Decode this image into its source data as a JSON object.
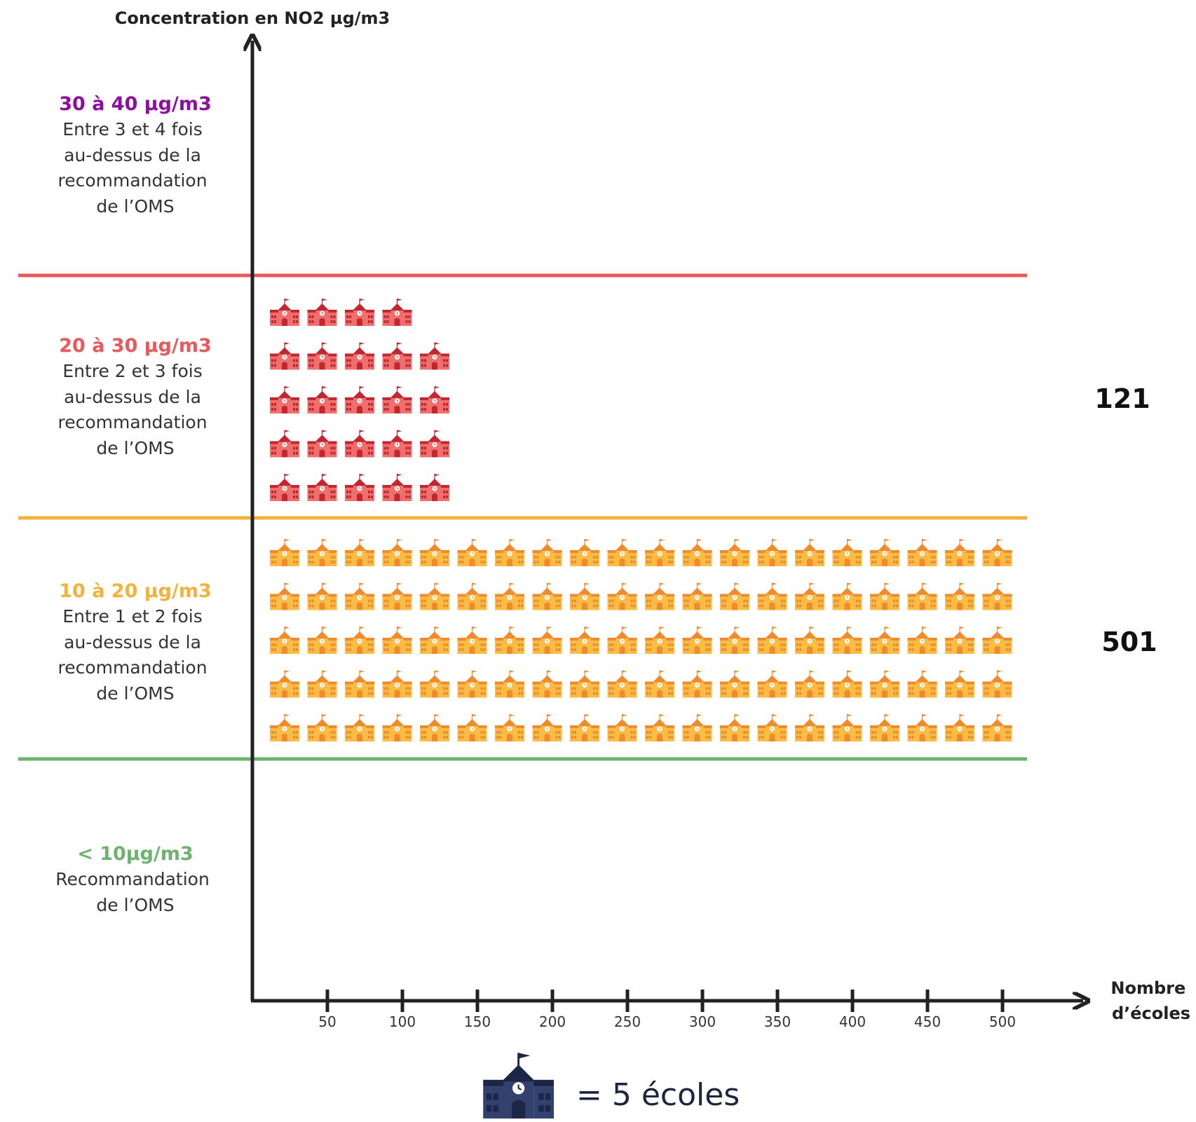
{
  "chart_data": {
    "type": "pictogram",
    "y_axis_title": "Concentration en NO2 µg/m3",
    "x_axis_title": [
      "Nombre",
      "d’écoles"
    ],
    "x_ticks": [
      50,
      100,
      150,
      200,
      250,
      300,
      350,
      400,
      450,
      500
    ],
    "unit_value": 5,
    "legend": "= 5 écoles",
    "bands": [
      {
        "key": "b30",
        "title": "30 à 40 µg/m3",
        "color": "#8e0f9e",
        "description": [
          "Entre 3 et 4 fois",
          "au-dessus de la",
          "recommandation",
          "de l’OMS"
        ],
        "rows": [],
        "total": ""
      },
      {
        "key": "b20",
        "title": "20 à 30 µg/m3",
        "color": "#e8595e",
        "description": [
          "Entre 2 et 3 fois",
          "au-dessus de la",
          "recommandation",
          "de l’OMS"
        ],
        "rows": [
          4,
          5,
          5,
          5,
          5
        ],
        "total": "121"
      },
      {
        "key": "b10",
        "title": "10 à 20 µg/m3",
        "color": "#f1b33c",
        "description": [
          "Entre 1 et 2 fois",
          "au-dessus de la",
          "recommandation",
          "de l’OMS"
        ],
        "rows": [
          20,
          20,
          20,
          20,
          20
        ],
        "total": "501"
      },
      {
        "key": "b0",
        "title": "< 10µg/m3",
        "color": "#6cb36c",
        "description": [
          "Recommandation",
          "de l’OMS"
        ],
        "rows": [],
        "total": ""
      }
    ]
  }
}
